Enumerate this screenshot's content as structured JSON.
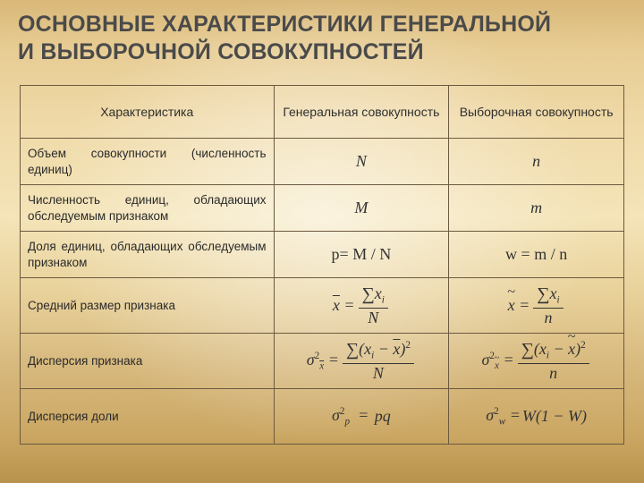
{
  "title_line1": "ОСНОВНЫЕ ХАРАКТЕРИСТИКИ ГЕНЕРАЛЬНОЙ",
  "title_line2": "И ВЫБОРОЧНОЙ СОВОКУПНОСТЕЙ",
  "table": {
    "columns": [
      "Характеристика",
      "Генеральная совокупность",
      "Выборочная совокупность"
    ],
    "col_widths_pct": [
      42,
      29,
      29
    ],
    "border_color": "#6b5a3f",
    "rows": [
      {
        "desc": "Объем совокупности (численность единиц)",
        "gen": "N",
        "samp": "n",
        "italic": true
      },
      {
        "desc": "Численность единиц, обладающих обследуемым признаком",
        "gen": "M",
        "samp": "m",
        "italic": true
      },
      {
        "desc": "Доля единиц, обладающих обследуемым признаком",
        "gen": "p= M / N",
        "samp": "w = m / n",
        "italic": false
      },
      {
        "desc": "Средний размер признака",
        "gen_formula": "xbar_sum_over_N",
        "samp_formula": "xtilde_sum_over_n"
      },
      {
        "desc": "Дисперсия признака",
        "gen_formula": "var_x_N",
        "samp_formula": "var_x_n"
      },
      {
        "desc": "Дисперсия доли",
        "gen_formula": "sigma_p2_pq",
        "samp_formula": "sigma_w2_W"
      }
    ]
  },
  "formulas": {
    "xbar_sum_over_N": {
      "lhs_bar": "x",
      "sum_var": "x",
      "sum_sub": "i",
      "den": "N"
    },
    "xtilde_sum_over_n": {
      "lhs_tilde": "x",
      "sum_var": "x",
      "sum_sub": "i",
      "den": "n"
    },
    "var_x_N": {
      "sigma_sub_bar": "x",
      "diff_bar": "x",
      "den": "N"
    },
    "var_x_n": {
      "sigma_sub_tilde": "x",
      "diff_tilde": "x",
      "den": "n"
    },
    "sigma_p2_pq": {
      "sigma_sub": "p",
      "rhs": "pq"
    },
    "sigma_w2_W": {
      "sigma_sub": "w",
      "rhs_W": "W"
    }
  },
  "style": {
    "title_color": "#4a4a4a",
    "title_fontsize": 25,
    "header_fontsize": 14,
    "desc_fontsize": 13.5,
    "cell_fontsize": 18,
    "bg_gradient_stops": [
      "#d9b879",
      "#e7cc93",
      "#efd9a7",
      "#f4e4b8",
      "#e9d29b",
      "#d8ba7f",
      "#cba763",
      "#b8934e"
    ]
  }
}
